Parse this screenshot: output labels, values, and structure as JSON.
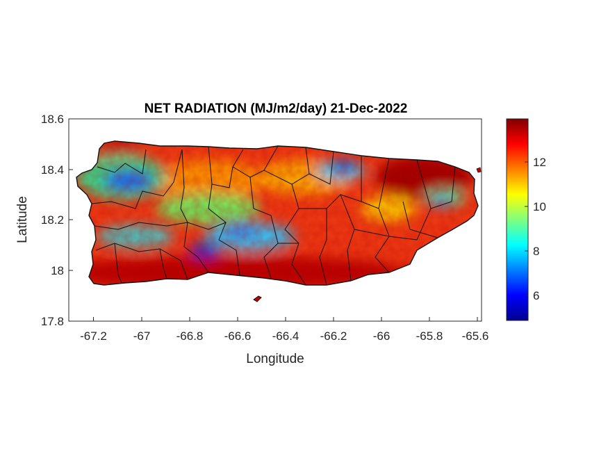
{
  "chart_data": {
    "type": "heatmap",
    "title": "NET RADIATION (MJ/m2/day) 21-Dec-2022",
    "xlabel": "Longitude",
    "ylabel": "Latitude",
    "xlim": [
      -67.3,
      -65.58
    ],
    "ylim": [
      17.8,
      18.6
    ],
    "x_ticks": [
      -67.2,
      -67,
      -66.8,
      -66.6,
      -66.4,
      -66.2,
      -66,
      -65.8,
      -65.6
    ],
    "x_tick_labels": [
      "-67.2",
      "-67",
      "-66.8",
      "-66.6",
      "-66.4",
      "-66.2",
      "-66",
      "-65.8",
      "-65.6"
    ],
    "y_ticks": [
      17.8,
      18,
      18.2,
      18.4,
      18.6
    ],
    "y_tick_labels": [
      "17.8",
      "18",
      "18.2",
      "18.4",
      "18.6"
    ],
    "colorbar": {
      "colormap": "jet",
      "range": [
        4.9,
        13.9
      ],
      "ticks": [
        6,
        8,
        10,
        12
      ],
      "tick_labels": [
        "6",
        "8",
        "10",
        "12"
      ]
    },
    "low_value_regions": [
      {
        "lon": -67.15,
        "lat": 18.35,
        "value": 7
      },
      {
        "lon": -66.77,
        "lat": 18.07,
        "value": 6
      },
      {
        "lon": -66.5,
        "lat": 18.17,
        "value": 7.5
      },
      {
        "lon": -66.17,
        "lat": 18.41,
        "value": 7.5
      },
      {
        "lon": -65.85,
        "lat": 18.27,
        "value": 8.5
      }
    ],
    "grid": false
  }
}
